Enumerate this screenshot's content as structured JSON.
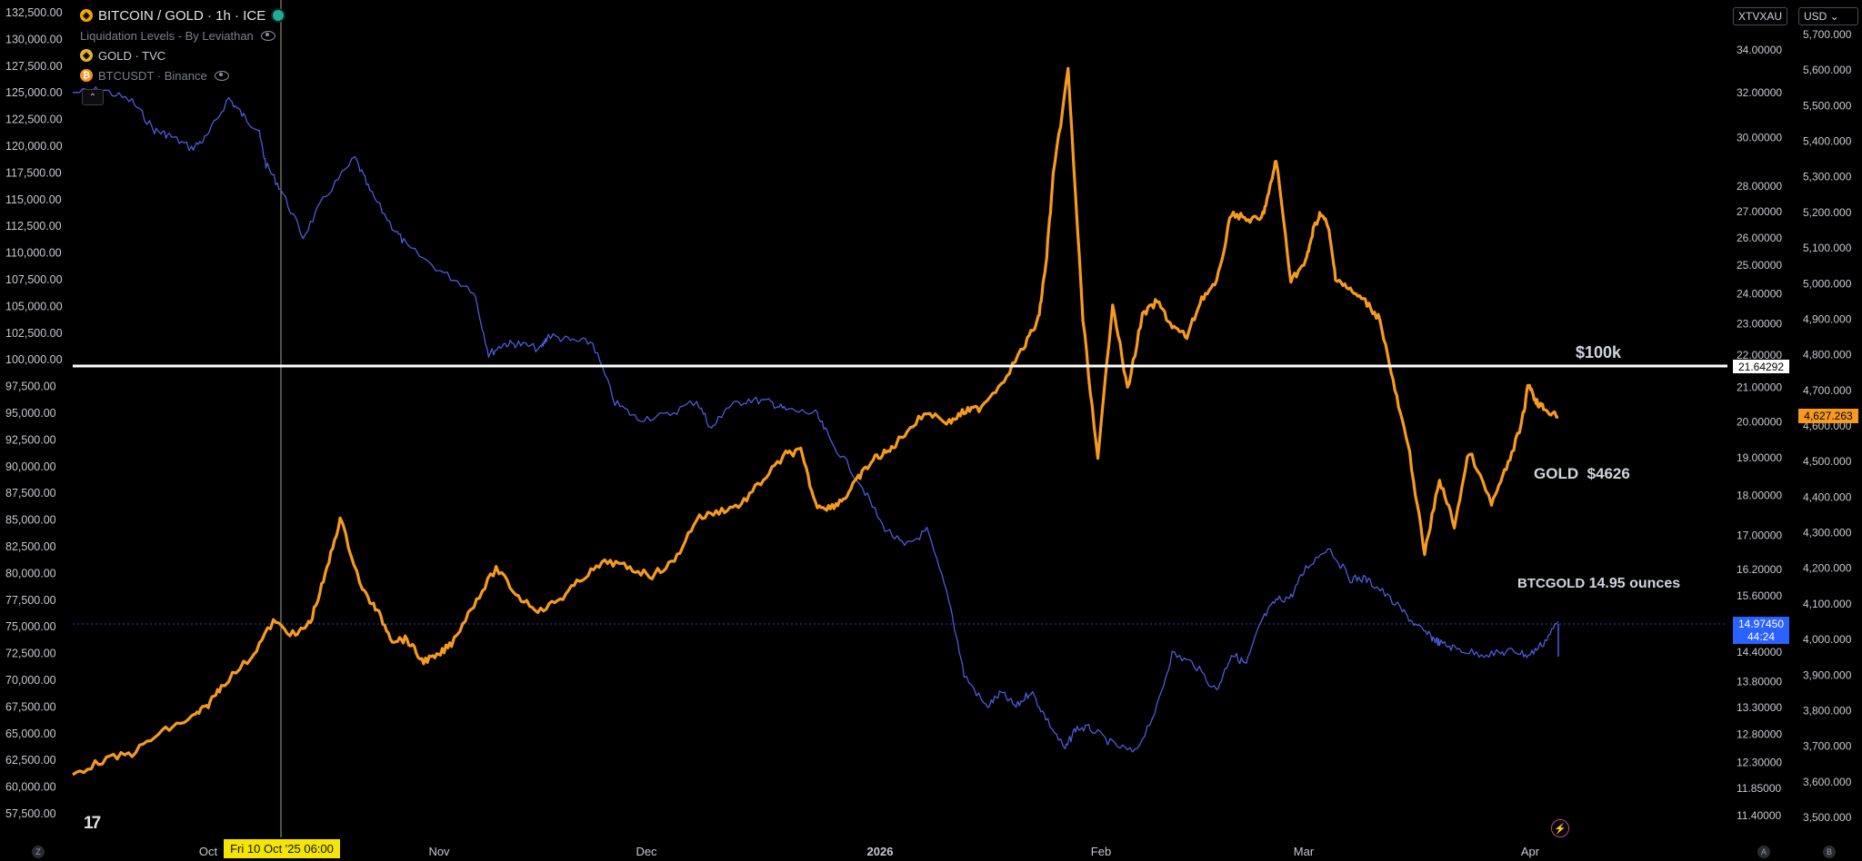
{
  "legend": {
    "main_title": "BITCOIN / GOLD · 1h · ICE",
    "indicator": "Liquidation Levels - By Leviathan",
    "series2": "GOLD · TVC",
    "series3": "BTCUSDT · Binance"
  },
  "top_right": {
    "symbol_box": "XTVXAU",
    "currency_box": "USD ⌄"
  },
  "crosshair": {
    "date_label": "Fri 10 Oct '25   06:00"
  },
  "corners": {
    "left": "Z",
    "right1": "A",
    "right2": "B"
  },
  "tv_logo": "17",
  "colors": {
    "btc_usd": "#4a5ddc",
    "gold": "#f79a1f",
    "ratio_tag": "#2962ff",
    "gold_tag": "#f79a1f",
    "hline": "#ffffff",
    "annotation_gold": "#e8c547",
    "annotation_white": "#e9e9e9",
    "crosshair": "#f5e500"
  },
  "chart_data": {
    "type": "line",
    "title": "BITCOIN / GOLD · 1h · ICE",
    "x_ticks": [
      "Oct",
      "Nov",
      "Dec",
      "2026",
      "Feb",
      "Mar",
      "Apr"
    ],
    "left_axis": {
      "ticks": [
        "132,500.00",
        "130,000.00",
        "127,500.00",
        "125,000.00",
        "122,500.00",
        "120,000.00",
        "117,500.00",
        "115,000.00",
        "112,500.00",
        "110,000.00",
        "107,500.00",
        "105,000.00",
        "102,500.00",
        "100,000.00",
        "97,500.00",
        "95,000.00",
        "92,500.00",
        "90,000.00",
        "87,500.00",
        "85,000.00",
        "82,500.00",
        "80,000.00",
        "77,500.00",
        "75,000.00",
        "72,500.00",
        "70,000.00",
        "67,500.00",
        "65,000.00",
        "62,500.00",
        "60,000.00",
        "57,500.00"
      ],
      "range": [
        57500,
        132500
      ]
    },
    "right_axis_ratio": {
      "ticks": [
        "34.00000",
        "32.00000",
        "30.00000",
        "28.00000",
        "27.00000",
        "26.00000",
        "25.00000",
        "24.00000",
        "23.00000",
        "22.00000",
        "21.00000",
        "20.00000",
        "19.00000",
        "18.00000",
        "17.00000",
        "16.20000",
        "15.60000",
        "15.00000",
        "14.40000",
        "13.80000",
        "13.30000",
        "12.80000",
        "12.30000",
        "11.85000",
        "11.40000"
      ],
      "scale": "log"
    },
    "right_axis_gold": {
      "ticks": [
        "5,700.000",
        "5,600.000",
        "5,500.000",
        "5,400.000",
        "5,300.000",
        "5,200.000",
        "5,100.000",
        "5,000.000",
        "4,900.000",
        "4,800.000",
        "4,700.000",
        "4,600.000",
        "4,500.000",
        "4,400.000",
        "4,300.000",
        "4,200.000",
        "4,100.000",
        "4,000.000",
        "3,900.000",
        "3,800.000",
        "3,700.000",
        "3,600.000",
        "3,500.000"
      ],
      "range": [
        3500,
        5700
      ]
    },
    "series": [
      {
        "name": "BTCUSDT · Binance",
        "axis": "left",
        "color": "#4a5ddc",
        "x": [
          0.0,
          0.02,
          0.04,
          0.055,
          0.065,
          0.08,
          0.09,
          0.105,
          0.115,
          0.125,
          0.13,
          0.14,
          0.155,
          0.17,
          0.19,
          0.2,
          0.215,
          0.225,
          0.25,
          0.27,
          0.28,
          0.29,
          0.3,
          0.315,
          0.32,
          0.335,
          0.35,
          0.365,
          0.38,
          0.4,
          0.42,
          0.43,
          0.44,
          0.455,
          0.47,
          0.48,
          0.5,
          0.51,
          0.53,
          0.545,
          0.56,
          0.575,
          0.59,
          0.6,
          0.615,
          0.625,
          0.635,
          0.645,
          0.655,
          0.668,
          0.675,
          0.685,
          0.7,
          0.715,
          0.73,
          0.74,
          0.755,
          0.77,
          0.78,
          0.79,
          0.8,
          0.81,
          0.82,
          0.83,
          0.845,
          0.86,
          0.87,
          0.88,
          0.895,
          0.905,
          0.915,
          0.92,
          0.93,
          0.945,
          0.96,
          0.97,
          0.98,
          0.99,
          1.0
        ],
        "y": [
          125000,
          125300,
          124200,
          121500,
          121000,
          119800,
          120800,
          124500,
          122800,
          121500,
          118300,
          116000,
          111500,
          115300,
          118900,
          115800,
          112500,
          110600,
          108100,
          106500,
          100500,
          101500,
          101500,
          101000,
          102300,
          101800,
          101600,
          96000,
          94500,
          94800,
          96200,
          93500,
          95500,
          96300,
          96000,
          95300,
          95000,
          92500,
          88500,
          84500,
          82500,
          84000,
          77500,
          70500,
          67500,
          68800,
          67500,
          69000,
          66500,
          63500,
          65500,
          65500,
          64000,
          63200,
          67500,
          72500,
          71500,
          69000,
          72500,
          71500,
          75500,
          77500,
          77800,
          80500,
          82500,
          79500,
          79500,
          78500,
          76500,
          75000,
          74000,
          73500,
          73000,
          72500,
          72500,
          72800,
          72300,
          73500,
          75500
        ]
      },
      {
        "name": "GOLD · TVC",
        "axis": "right_gold",
        "color": "#f79a1f",
        "x": [
          0.0,
          0.02,
          0.04,
          0.06,
          0.08,
          0.09,
          0.1,
          0.12,
          0.135,
          0.15,
          0.16,
          0.17,
          0.18,
          0.195,
          0.205,
          0.215,
          0.225,
          0.235,
          0.245,
          0.255,
          0.27,
          0.285,
          0.3,
          0.315,
          0.33,
          0.345,
          0.36,
          0.375,
          0.39,
          0.405,
          0.42,
          0.435,
          0.45,
          0.465,
          0.48,
          0.49,
          0.5,
          0.51,
          0.52,
          0.53,
          0.54,
          0.55,
          0.56,
          0.575,
          0.59,
          0.6,
          0.61,
          0.625,
          0.64,
          0.65,
          0.655,
          0.66,
          0.67,
          0.68,
          0.69,
          0.7,
          0.71,
          0.72,
          0.73,
          0.74,
          0.75,
          0.76,
          0.77,
          0.78,
          0.79,
          0.8,
          0.805,
          0.81,
          0.82,
          0.83,
          0.835,
          0.84,
          0.845,
          0.85,
          0.86,
          0.87,
          0.88,
          0.89,
          0.9,
          0.91,
          0.92,
          0.93,
          0.94,
          0.955,
          0.965,
          0.975,
          0.98,
          0.985,
          0.99,
          1.0
        ],
        "y": [
          3620,
          3660,
          3680,
          3740,
          3780,
          3810,
          3870,
          3950,
          4050,
          4010,
          4050,
          4180,
          4340,
          4140,
          4080,
          4000,
          4000,
          3940,
          3950,
          3990,
          4100,
          4200,
          4120,
          4080,
          4120,
          4180,
          4220,
          4200,
          4180,
          4220,
          4340,
          4360,
          4380,
          4450,
          4520,
          4530,
          4380,
          4370,
          4400,
          4460,
          4510,
          4530,
          4580,
          4640,
          4610,
          4640,
          4650,
          4720,
          4820,
          4900,
          5050,
          5300,
          5600,
          4900,
          4500,
          4950,
          4700,
          4910,
          4950,
          4880,
          4850,
          4960,
          5000,
          5200,
          5180,
          5180,
          5250,
          5350,
          5010,
          5060,
          5150,
          5200,
          5160,
          5020,
          4980,
          4950,
          4900,
          4700,
          4520,
          4240,
          4450,
          4320,
          4530,
          4380,
          4480,
          4600,
          4720,
          4670,
          4650,
          4626
        ]
      },
      {
        "name": "BITCOIN / GOLD",
        "axis": "right_ratio",
        "color": "#4a5ddc",
        "last_value": "14.97450"
      }
    ],
    "horizontal_line": {
      "left_value": "100,000.00",
      "right_value": "21.64292",
      "label": "$100k"
    },
    "price_tags": {
      "ratio_value": "14.97450",
      "ratio_countdown": "44:24",
      "gold_value": "4,627.263"
    },
    "annotations": [
      {
        "name": "hline",
        "text": "$100k"
      },
      {
        "name": "gold",
        "parts": [
          "GOLD",
          "$4626"
        ]
      },
      {
        "name": "btcgold",
        "parts": [
          "BTCGOLD",
          "14.95 ounces"
        ]
      }
    ]
  }
}
